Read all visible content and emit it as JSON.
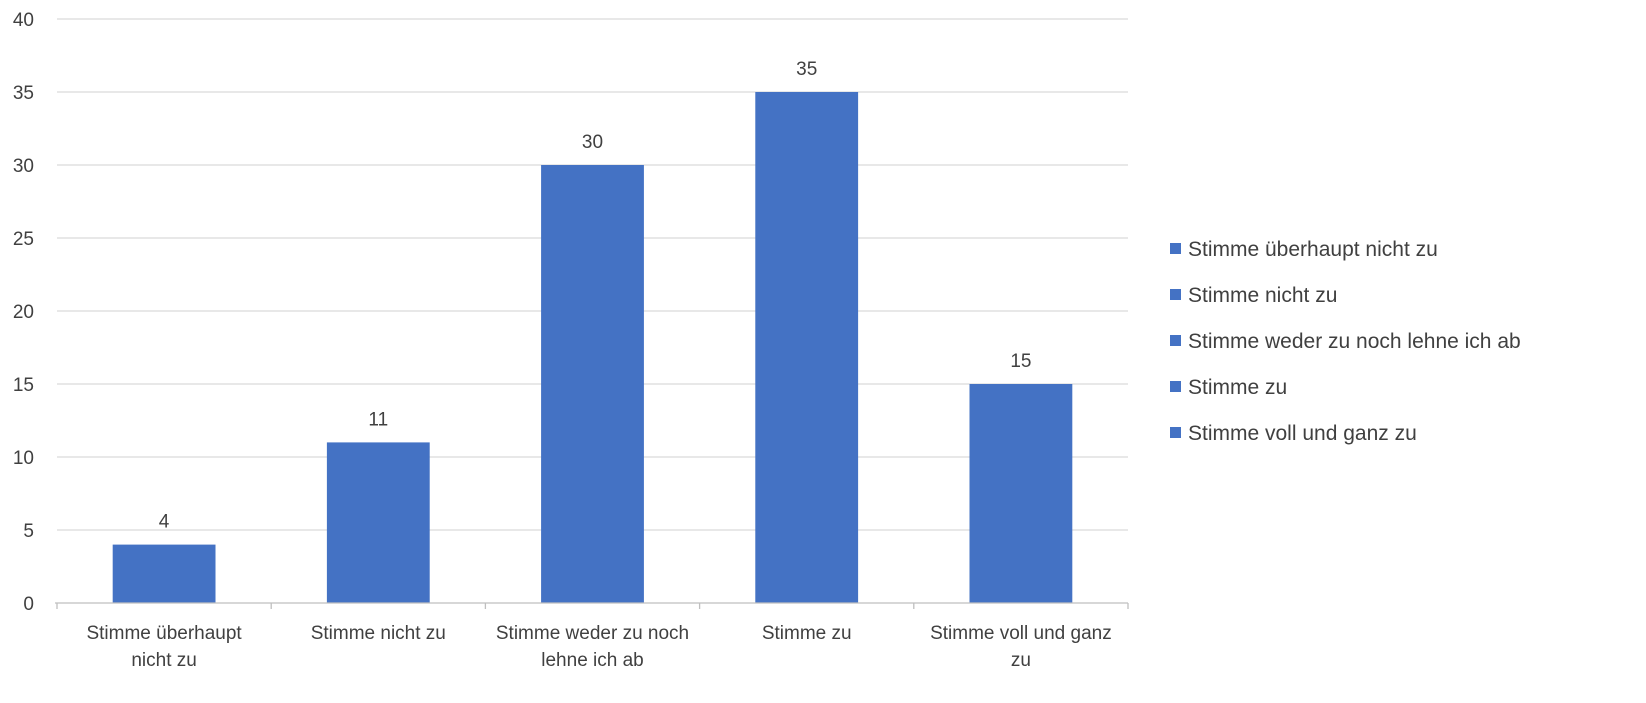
{
  "chart_data": {
    "type": "bar",
    "categories": [
      "Stimme überhaupt nicht zu",
      "Stimme nicht zu",
      "Stimme weder zu noch lehne ich ab",
      "Stimme zu",
      "Stimme voll und ganz zu"
    ],
    "category_label_lines": [
      [
        "Stimme überhaupt",
        "nicht zu"
      ],
      [
        "Stimme nicht zu"
      ],
      [
        "Stimme weder zu noch",
        "lehne ich ab"
      ],
      [
        "Stimme zu"
      ],
      [
        "Stimme voll und ganz",
        "zu"
      ]
    ],
    "values": [
      4,
      11,
      30,
      35,
      15
    ],
    "data_labels": [
      "4",
      "11",
      "30",
      "35",
      "15"
    ],
    "y_ticks": [
      0,
      5,
      10,
      15,
      20,
      25,
      30,
      35,
      40
    ],
    "ylim": [
      0,
      40
    ],
    "grid": true,
    "legend": {
      "position": "right",
      "entries": [
        "Stimme überhaupt nicht zu",
        "Stimme nicht zu",
        "Stimme weder zu noch lehne ich ab",
        "Stimme zu",
        "Stimme voll und ganz zu"
      ]
    },
    "colors": {
      "bar": "#4472C4",
      "grid": "#D9D9D9",
      "axis": "#BFBFBF",
      "text": "#404040"
    }
  }
}
